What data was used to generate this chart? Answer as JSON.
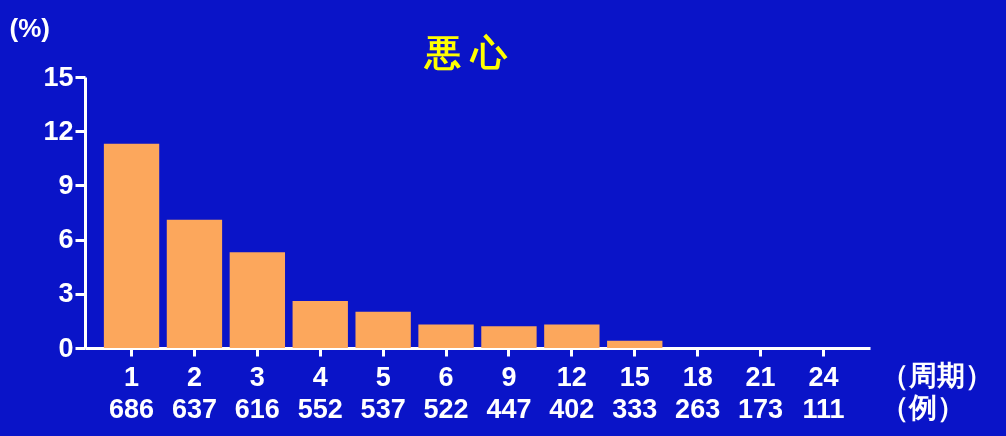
{
  "chart_data": {
    "type": "bar",
    "title": "悪 心",
    "ylabel": "(%)",
    "xlabel": "（周期）（例）",
    "categories": [
      "1\n686",
      "2\n637",
      "3\n616",
      "4\n552",
      "5\n537",
      "6\n522",
      "9\n447",
      "12\n402",
      "15\n333",
      "18\n263",
      "21\n173",
      "24\n111"
    ],
    "values": [
      11.3,
      7.1,
      5.3,
      2.6,
      2.0,
      1.3,
      1.2,
      1.3,
      0.4,
      0,
      0,
      0
    ],
    "color": "#fca75c",
    "ylim": [
      0,
      15
    ],
    "yticks": [
      0,
      3,
      6,
      9,
      12,
      15
    ],
    "grid": false
  }
}
